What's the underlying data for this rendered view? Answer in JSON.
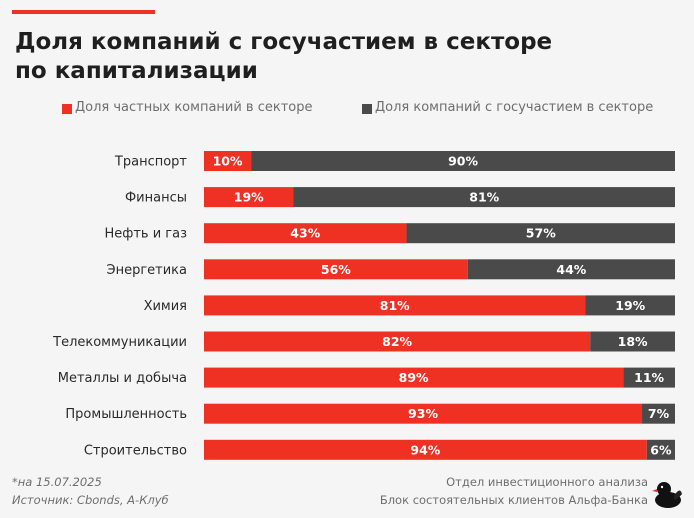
{
  "title": {
    "line1": "Доля компаний с госучастием в секторе",
    "line2": "по капитализации"
  },
  "legend": {
    "private": "Доля частных компаний в секторе",
    "state": "Доля компаний с госучастием в секторе"
  },
  "colors": {
    "private": "#ef3124",
    "state": "#4a4a4a",
    "label_text": "#ffffff",
    "category_text": "#2a2a2a"
  },
  "chart_data": {
    "type": "bar",
    "orientation": "horizontal-stacked-100",
    "title": "Доля компаний с госучастием в секторе по капитализации",
    "categories": [
      "Транспорт",
      "Финансы",
      "Нефть и газ",
      "Энергетика",
      "Химия",
      "Телекоммуникации",
      "Металлы и добыча",
      "Промышленность",
      "Строительство"
    ],
    "series": [
      {
        "name": "Доля частных компаний в секторе",
        "values": [
          10,
          19,
          43,
          56,
          81,
          82,
          89,
          93,
          94
        ],
        "labels": [
          "10%",
          "19%",
          "43%",
          "56%",
          "81%",
          "82%",
          "89%",
          "93%",
          "94%"
        ]
      },
      {
        "name": "Доля компаний с госучастием в секторе",
        "values": [
          90,
          81,
          57,
          44,
          19,
          18,
          11,
          7,
          6
        ],
        "labels": [
          "90%",
          "81%",
          "57%",
          "44%",
          "19%",
          "18%",
          "11%",
          "7%",
          "6%"
        ]
      }
    ],
    "xlim": [
      0,
      100
    ],
    "legend_position": "top"
  },
  "footer": {
    "date_note": "*на 15.07.2025",
    "source": "Источник: Cbonds, А-Клуб",
    "dept": "Отдел инвестиционного анализа",
    "block": "Блок состоятельных клиентов Альфа-Банка"
  },
  "logo": "duck-logo-icon"
}
